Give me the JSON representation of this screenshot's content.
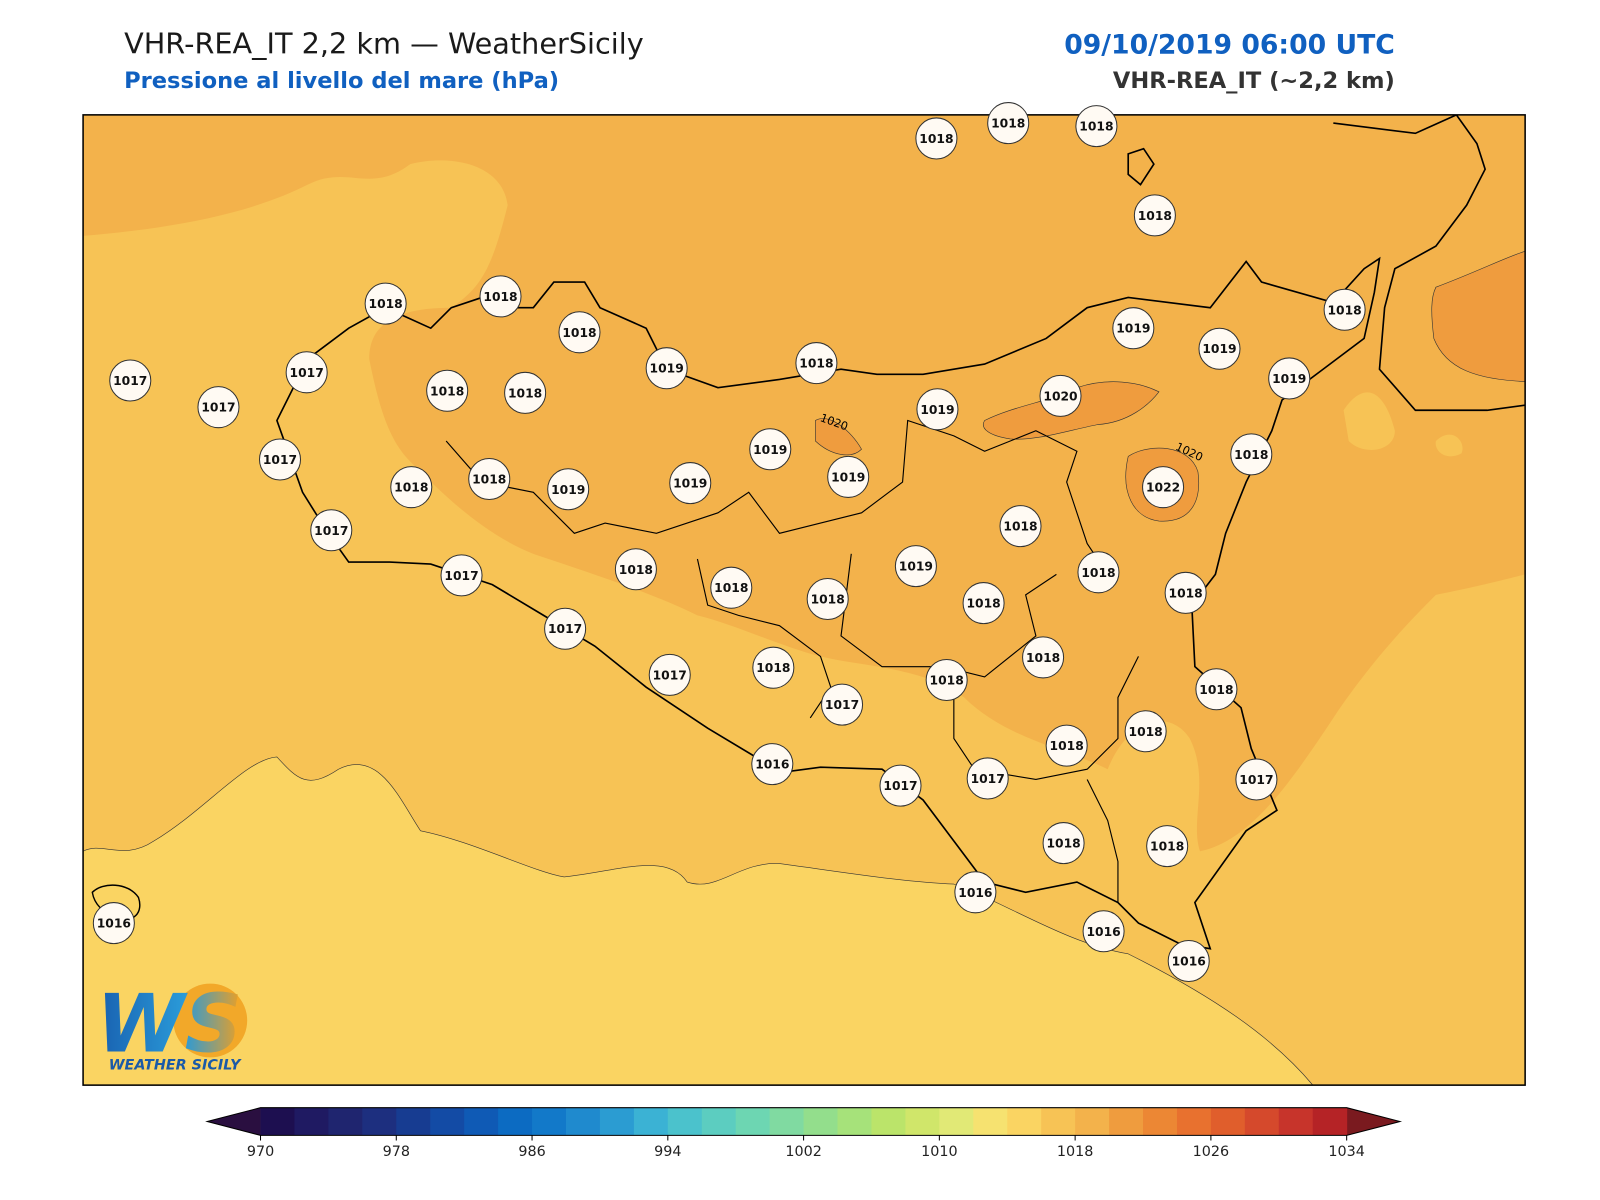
{
  "header": {
    "title": "VHR-REA_IT 2,2 km — WeatherSicily",
    "subtitle": "Pressione al livello del mare (hPa)",
    "datetime": "09/10/2019 06:00 UTC",
    "model": "VHR-REA_IT (~2,2 km)"
  },
  "stations": [
    1018,
    1018,
    1018,
    1018,
    1018,
    1018,
    1018,
    1019,
    1018,
    1019,
    1019,
    1018,
    1019,
    1017,
    1017,
    1017,
    1018,
    1018,
    1020,
    1019,
    1017,
    1018,
    1018,
    1019,
    1019,
    1019,
    1019,
    1022,
    1018,
    1017,
    1018,
    1017,
    1018,
    1018,
    1018,
    1019,
    1018,
    1018,
    1018,
    1017,
    1018,
    1017,
    1018,
    1018,
    1017,
    1018,
    1018,
    1018,
    1016,
    1017,
    1017,
    1017,
    1018,
    1018,
    1016,
    1016,
    1016,
    1016
  ],
  "contour_labels": [
    1020,
    1020
  ],
  "logo": {
    "mark": "WS",
    "name": "WEATHER SICILY"
  },
  "colorbar": {
    "lim": [
      970,
      1034
    ],
    "ticks": [
      970,
      978,
      986,
      994,
      1002,
      1010,
      1018,
      1026,
      1034
    ],
    "under_color": "#2a0f40",
    "over_color": "#7a1a1f",
    "colors": [
      "#1d0f50",
      "#1f1a62",
      "#1f256f",
      "#1d2f7f",
      "#173c91",
      "#134ba5",
      "#0f5ab5",
      "#0c6bc2",
      "#1279c9",
      "#1f8ace",
      "#2b9cd2",
      "#3bb2d4",
      "#4bc2cc",
      "#5ccdc0",
      "#6dd6b2",
      "#80daa1",
      "#93de8c",
      "#a6e27a",
      "#bbe46a",
      "#d0e66a",
      "#e1e976",
      "#f6e270",
      "#fad462",
      "#f7c355",
      "#f3b24b",
      "#ef9c3e",
      "#ec8734",
      "#e8712f",
      "#e05e2c",
      "#d5492c",
      "#c7342b",
      "#b52326"
    ]
  }
}
